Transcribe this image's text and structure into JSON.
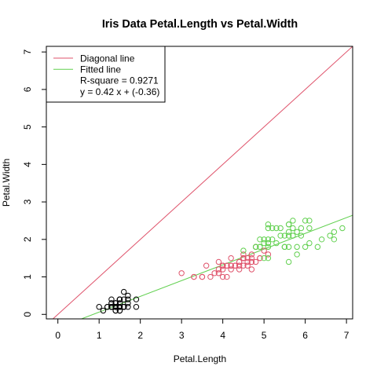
{
  "chart_data": {
    "type": "scatter",
    "title": "Iris Data Petal.Length vs Petal.Width",
    "xlabel": "Petal.Length",
    "ylabel": "Petal.Width",
    "xlim": [
      -0.28,
      7.15
    ],
    "ylim": [
      -0.12,
      7.15
    ],
    "xticks": [
      0,
      1,
      2,
      3,
      4,
      5,
      6,
      7
    ],
    "yticks": [
      0,
      1,
      2,
      3,
      4,
      5,
      6,
      7
    ],
    "grid": false,
    "legend_position": "top-left",
    "legend": {
      "items": [
        {
          "label": "Diagonal line",
          "color": "#DF536B"
        },
        {
          "label": "Fitted line",
          "color": "#61D04F"
        }
      ],
      "notes": [
        "R-square = 0.9271",
        "y = 0.42 x + (-0.36)"
      ]
    },
    "lines": [
      {
        "role": "diagonal",
        "slope": 1,
        "intercept": 0,
        "color": "#DF536B"
      },
      {
        "role": "fitted",
        "slope": 0.42,
        "intercept": -0.36,
        "color": "#61D04F"
      }
    ],
    "series": [
      {
        "color": "#000000",
        "points": [
          [
            1.4,
            0.2
          ],
          [
            1.4,
            0.2
          ],
          [
            1.3,
            0.2
          ],
          [
            1.5,
            0.2
          ],
          [
            1.4,
            0.2
          ],
          [
            1.7,
            0.4
          ],
          [
            1.4,
            0.3
          ],
          [
            1.5,
            0.2
          ],
          [
            1.4,
            0.2
          ],
          [
            1.5,
            0.1
          ],
          [
            1.5,
            0.2
          ],
          [
            1.6,
            0.2
          ],
          [
            1.4,
            0.1
          ],
          [
            1.1,
            0.1
          ],
          [
            1.2,
            0.2
          ],
          [
            1.5,
            0.4
          ],
          [
            1.3,
            0.4
          ],
          [
            1.4,
            0.3
          ],
          [
            1.7,
            0.3
          ],
          [
            1.5,
            0.3
          ],
          [
            1.7,
            0.2
          ],
          [
            1.5,
            0.4
          ],
          [
            1.0,
            0.2
          ],
          [
            1.7,
            0.5
          ],
          [
            1.9,
            0.2
          ],
          [
            1.6,
            0.2
          ],
          [
            1.6,
            0.4
          ],
          [
            1.5,
            0.2
          ],
          [
            1.4,
            0.2
          ],
          [
            1.6,
            0.2
          ],
          [
            1.6,
            0.2
          ],
          [
            1.5,
            0.4
          ],
          [
            1.5,
            0.1
          ],
          [
            1.4,
            0.2
          ],
          [
            1.5,
            0.2
          ],
          [
            1.2,
            0.2
          ],
          [
            1.3,
            0.2
          ],
          [
            1.4,
            0.1
          ],
          [
            1.3,
            0.2
          ],
          [
            1.5,
            0.2
          ],
          [
            1.3,
            0.3
          ],
          [
            1.3,
            0.3
          ],
          [
            1.3,
            0.2
          ],
          [
            1.6,
            0.6
          ],
          [
            1.9,
            0.4
          ],
          [
            1.4,
            0.3
          ],
          [
            1.6,
            0.2
          ],
          [
            1.4,
            0.2
          ],
          [
            1.5,
            0.2
          ],
          [
            1.4,
            0.2
          ]
        ]
      },
      {
        "color": "#DF536B",
        "points": [
          [
            4.7,
            1.4
          ],
          [
            4.5,
            1.5
          ],
          [
            4.9,
            1.5
          ],
          [
            4.0,
            1.3
          ],
          [
            4.6,
            1.5
          ],
          [
            4.5,
            1.3
          ],
          [
            4.7,
            1.6
          ],
          [
            3.3,
            1.0
          ],
          [
            4.6,
            1.3
          ],
          [
            3.9,
            1.4
          ],
          [
            3.5,
            1.0
          ],
          [
            4.2,
            1.5
          ],
          [
            4.0,
            1.0
          ],
          [
            4.7,
            1.4
          ],
          [
            3.6,
            1.3
          ],
          [
            4.4,
            1.4
          ],
          [
            4.5,
            1.5
          ],
          [
            4.1,
            1.0
          ],
          [
            4.5,
            1.5
          ],
          [
            3.9,
            1.1
          ],
          [
            4.8,
            1.8
          ],
          [
            4.0,
            1.3
          ],
          [
            4.9,
            1.5
          ],
          [
            4.7,
            1.2
          ],
          [
            4.3,
            1.3
          ],
          [
            4.4,
            1.4
          ],
          [
            4.8,
            1.4
          ],
          [
            5.0,
            1.7
          ],
          [
            4.5,
            1.5
          ],
          [
            3.5,
            1.0
          ],
          [
            3.8,
            1.1
          ],
          [
            3.7,
            1.0
          ],
          [
            3.9,
            1.2
          ],
          [
            5.1,
            1.6
          ],
          [
            4.5,
            1.5
          ],
          [
            4.5,
            1.6
          ],
          [
            4.7,
            1.5
          ],
          [
            4.4,
            1.3
          ],
          [
            4.1,
            1.3
          ],
          [
            4.0,
            1.3
          ],
          [
            4.4,
            1.2
          ],
          [
            4.6,
            1.4
          ],
          [
            4.0,
            1.2
          ],
          [
            3.3,
            1.0
          ],
          [
            4.2,
            1.3
          ],
          [
            4.2,
            1.2
          ],
          [
            4.2,
            1.3
          ],
          [
            4.3,
            1.3
          ],
          [
            3.0,
            1.1
          ],
          [
            4.1,
            1.3
          ]
        ]
      },
      {
        "color": "#61D04F",
        "points": [
          [
            6.0,
            2.5
          ],
          [
            5.1,
            1.9
          ],
          [
            5.9,
            2.1
          ],
          [
            5.6,
            1.8
          ],
          [
            5.8,
            2.2
          ],
          [
            6.6,
            2.1
          ],
          [
            4.5,
            1.7
          ],
          [
            6.3,
            1.8
          ],
          [
            5.8,
            1.8
          ],
          [
            6.1,
            2.5
          ],
          [
            5.1,
            2.0
          ],
          [
            5.3,
            1.9
          ],
          [
            5.5,
            2.1
          ],
          [
            5.0,
            2.0
          ],
          [
            5.1,
            2.4
          ],
          [
            5.3,
            2.3
          ],
          [
            5.5,
            1.8
          ],
          [
            6.7,
            2.2
          ],
          [
            6.9,
            2.3
          ],
          [
            5.0,
            1.5
          ],
          [
            5.7,
            2.3
          ],
          [
            4.9,
            2.0
          ],
          [
            6.7,
            2.0
          ],
          [
            4.9,
            1.8
          ],
          [
            5.7,
            2.1
          ],
          [
            6.0,
            1.8
          ],
          [
            4.8,
            1.8
          ],
          [
            4.9,
            1.8
          ],
          [
            5.6,
            2.1
          ],
          [
            5.8,
            1.6
          ],
          [
            6.1,
            1.9
          ],
          [
            6.4,
            2.0
          ],
          [
            5.6,
            2.2
          ],
          [
            5.1,
            1.5
          ],
          [
            5.6,
            1.4
          ],
          [
            6.1,
            2.3
          ],
          [
            5.6,
            2.4
          ],
          [
            5.5,
            1.8
          ],
          [
            4.8,
            1.8
          ],
          [
            5.4,
            2.1
          ],
          [
            5.6,
            2.4
          ],
          [
            5.1,
            2.3
          ],
          [
            5.1,
            1.9
          ],
          [
            5.9,
            2.3
          ],
          [
            5.7,
            2.5
          ],
          [
            5.2,
            2.3
          ],
          [
            5.0,
            1.9
          ],
          [
            5.2,
            2.0
          ],
          [
            5.4,
            2.3
          ],
          [
            5.1,
            1.8
          ]
        ]
      }
    ]
  }
}
